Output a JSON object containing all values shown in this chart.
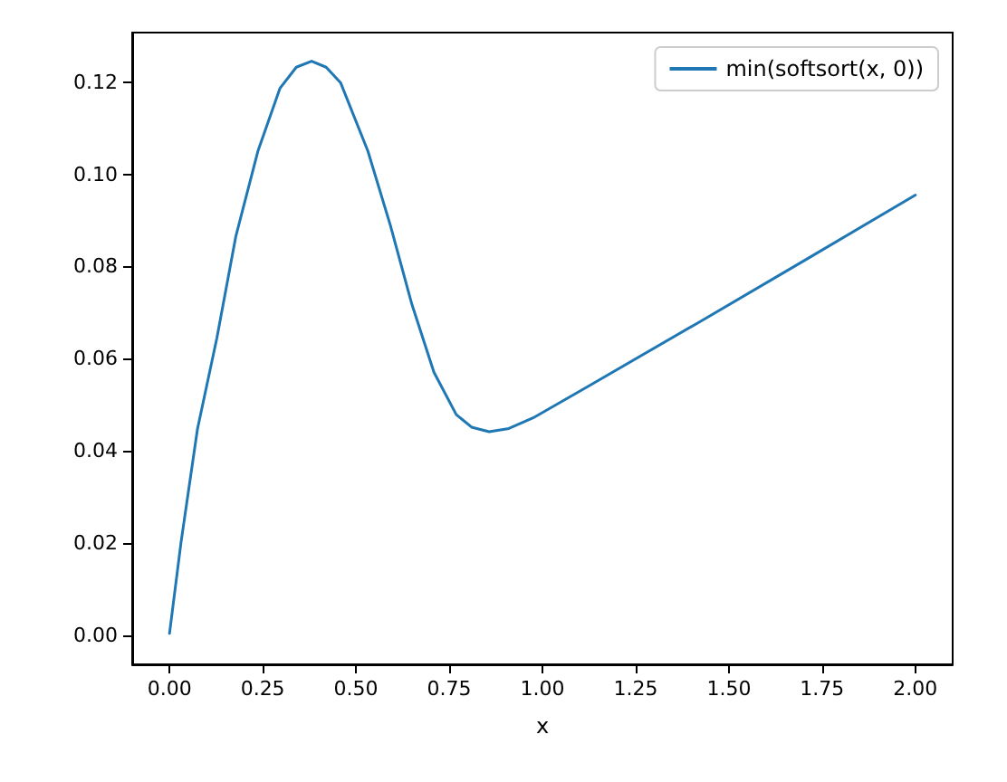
{
  "chart_data": {
    "type": "line",
    "xlabel": "x",
    "x": [
      0,
      0.031,
      0.075,
      0.127,
      0.178,
      0.237,
      0.296,
      0.34,
      0.381,
      0.42,
      0.459,
      0.532,
      0.592,
      0.65,
      0.709,
      0.769,
      0.81,
      0.857,
      0.91,
      0.975,
      1.122,
      1.417,
      1.698,
      2.0
    ],
    "series": [
      {
        "name": "min(softsort(x, 0))",
        "color": "#1f77b4",
        "values": [
          0.0005,
          0.0203,
          0.0448,
          0.0645,
          0.0866,
          0.105,
          0.1186,
          0.1232,
          0.1245,
          0.1232,
          0.1198,
          0.105,
          0.089,
          0.0718,
          0.0571,
          0.0479,
          0.0452,
          0.0442,
          0.0449,
          0.0472,
          0.054,
          0.0678,
          0.0811,
          0.0955
        ]
      }
    ],
    "xlim": [
      -0.1,
      2.1
    ],
    "ylim": [
      -0.0062,
      0.1307
    ],
    "xticks": [
      {
        "value": 0,
        "label": "0.00"
      },
      {
        "value": 0.25,
        "label": "0.25"
      },
      {
        "value": 0.5,
        "label": "0.50"
      },
      {
        "value": 0.75,
        "label": "0.75"
      },
      {
        "value": 1,
        "label": "1.00"
      },
      {
        "value": 1.25,
        "label": "1.25"
      },
      {
        "value": 1.5,
        "label": "1.50"
      },
      {
        "value": 1.75,
        "label": "1.75"
      },
      {
        "value": 2,
        "label": "2.00"
      }
    ],
    "yticks": [
      {
        "value": 0,
        "label": "0.00"
      },
      {
        "value": 0.02,
        "label": "0.02"
      },
      {
        "value": 0.04,
        "label": "0.04"
      },
      {
        "value": 0.06,
        "label": "0.06"
      },
      {
        "value": 0.08,
        "label": "0.08"
      },
      {
        "value": 0.1,
        "label": "0.10"
      },
      {
        "value": 0.12,
        "label": "0.12"
      }
    ],
    "legend": "top right",
    "grid": false,
    "marker": "none",
    "line_style": "solid"
  }
}
